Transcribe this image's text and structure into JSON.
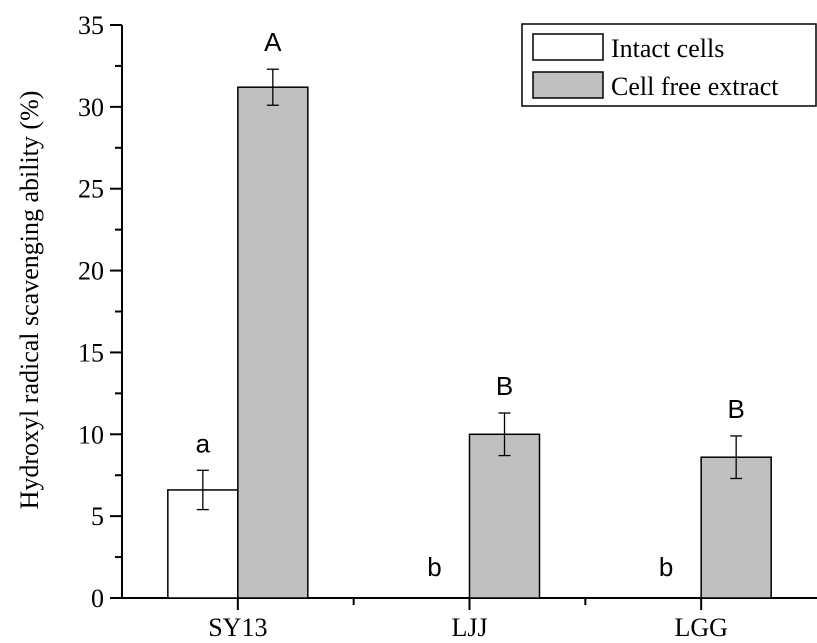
{
  "chart_data": {
    "type": "bar",
    "title": "",
    "xlabel": "",
    "ylabel": "Hydroxyl radical scavenging ability (%)",
    "ylim": [
      0,
      35
    ],
    "yticks": [
      0,
      5,
      10,
      15,
      20,
      25,
      30,
      35
    ],
    "grid": false,
    "legend_position": "top-right",
    "categories": [
      "SY13",
      "LJJ",
      "LGG"
    ],
    "series": [
      {
        "name": "Intact cells",
        "color": "#ffffff",
        "values": [
          6.6,
          0,
          0
        ],
        "errors": [
          1.2,
          0,
          0
        ],
        "letters": [
          "a",
          "b",
          "b"
        ]
      },
      {
        "name": "Cell free extract",
        "color": "#c0c0c0",
        "values": [
          31.2,
          10.0,
          8.6
        ],
        "errors": [
          1.1,
          1.3,
          1.3
        ],
        "letters": [
          "A",
          "B",
          "B"
        ]
      }
    ]
  }
}
